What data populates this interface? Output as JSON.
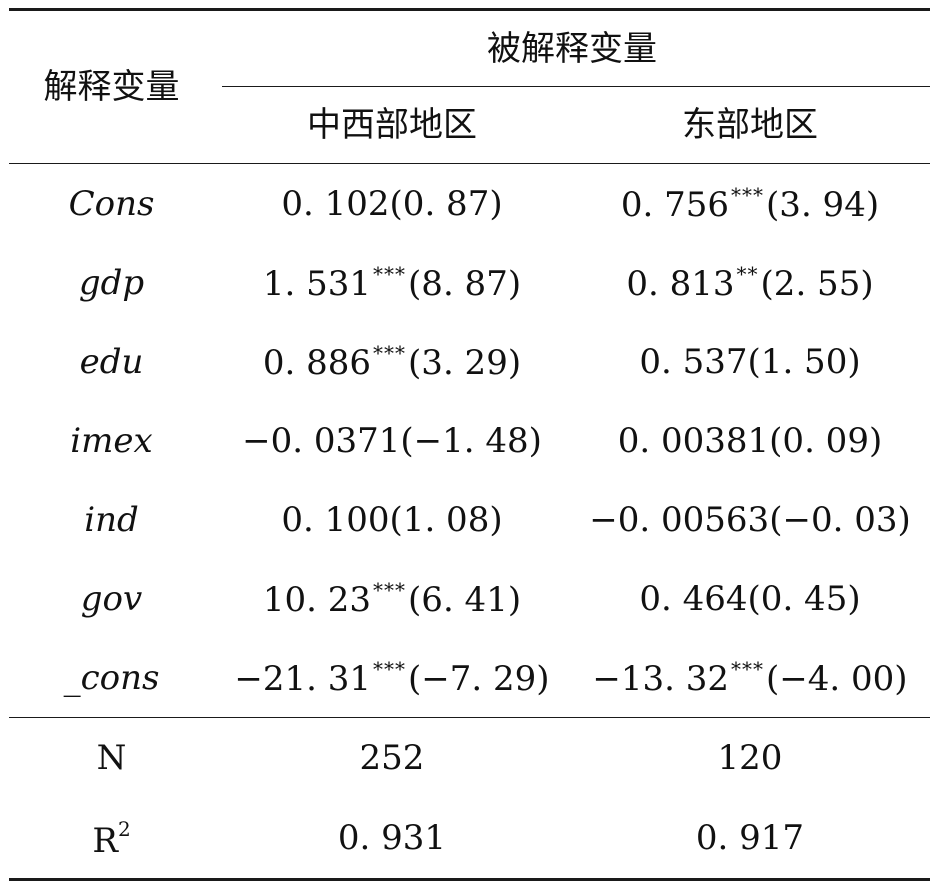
{
  "header": {
    "row_label": "解释变量",
    "group_label": "被解释变量",
    "columns": [
      "中西部地区",
      "东部地区"
    ]
  },
  "rows": [
    {
      "var": "Cons",
      "c1": {
        "coef": "0. 102",
        "stars": "",
        "t": "(0. 87)"
      },
      "c2": {
        "coef": "0. 756",
        "stars": "***",
        "t": "(3. 94)"
      }
    },
    {
      "var": "gdp",
      "c1": {
        "coef": "1. 531",
        "stars": "***",
        "t": "(8. 87)"
      },
      "c2": {
        "coef": "0. 813",
        "stars": "**",
        "t": "(2. 55)"
      }
    },
    {
      "var": "edu",
      "c1": {
        "coef": "0. 886",
        "stars": "***",
        "t": "(3. 29)"
      },
      "c2": {
        "coef": "0. 537",
        "stars": "",
        "t": "(1. 50)"
      }
    },
    {
      "var": "imex",
      "c1": {
        "coef": "−0. 0371",
        "stars": "",
        "t": "(−1. 48)"
      },
      "c2": {
        "coef": "0. 00381",
        "stars": "",
        "t": "(0. 09)"
      }
    },
    {
      "var": "ind",
      "c1": {
        "coef": "0. 100",
        "stars": "",
        "t": "(1. 08)"
      },
      "c2": {
        "coef": "−0. 00563",
        "stars": "",
        "t": "(−0. 03)"
      }
    },
    {
      "var": "gov",
      "c1": {
        "coef": "10. 23",
        "stars": "***",
        "t": "(6. 41)"
      },
      "c2": {
        "coef": "0. 464",
        "stars": "",
        "t": "(0. 45)"
      }
    },
    {
      "var": "_cons",
      "c1": {
        "coef": "−21. 31",
        "stars": "***",
        "t": "(−7. 29)"
      },
      "c2": {
        "coef": "−13. 32",
        "stars": "***",
        "t": "(−4. 00)"
      }
    }
  ],
  "stats": {
    "n": {
      "label": "N",
      "c1": "252",
      "c2": "120"
    },
    "r2": {
      "label": "R",
      "label_sup": "2",
      "c1": "0. 931",
      "c2": "0. 917"
    }
  }
}
